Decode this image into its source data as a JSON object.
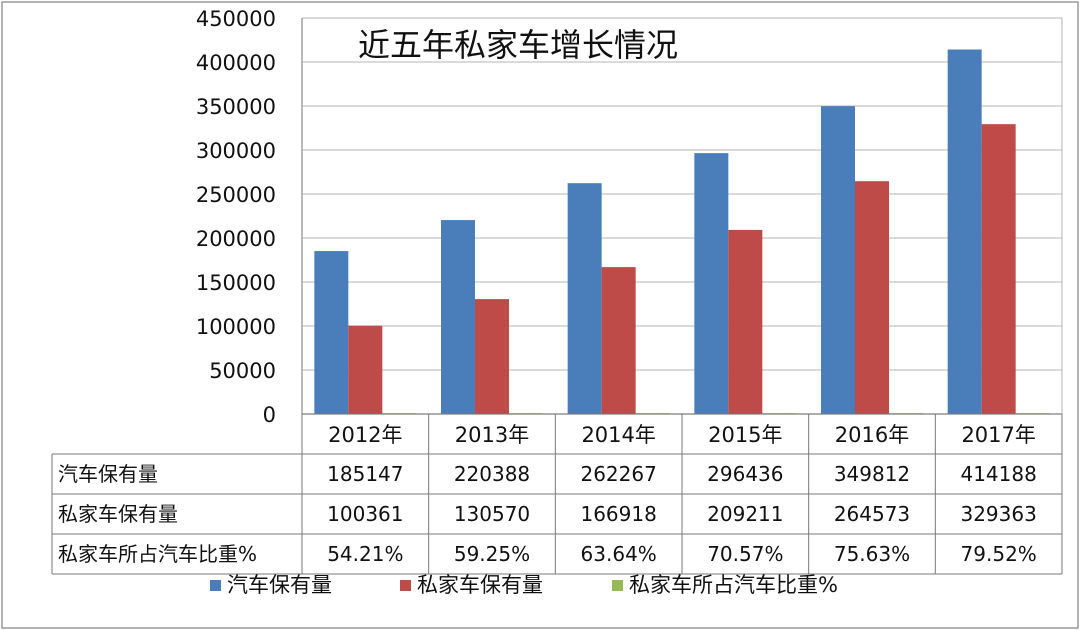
{
  "chart_data": {
    "type": "bar",
    "title": "近五年私家车增长情况",
    "categories": [
      "2012年",
      "2013年",
      "2014年",
      "2015年",
      "2016年",
      "2017年"
    ],
    "ylim": [
      0,
      450000
    ],
    "yticks": [
      0,
      50000,
      100000,
      150000,
      200000,
      250000,
      300000,
      350000,
      400000,
      450000
    ],
    "grid": true,
    "legend_position": "bottom",
    "series": [
      {
        "name": "汽车保有量",
        "color": "#4a7ebb",
        "values": [
          185147,
          220388,
          262267,
          296436,
          349812,
          414188
        ],
        "labels": [
          "185147",
          "220388",
          "262267",
          "296436",
          "349812",
          "414188"
        ]
      },
      {
        "name": "私家车保有量",
        "color": "#be4b48",
        "values": [
          100361,
          130570,
          166918,
          209211,
          264573,
          329363
        ],
        "labels": [
          "100361",
          "130570",
          "166918",
          "209211",
          "264573",
          "329363"
        ]
      },
      {
        "name": "私家车所占汽车比重%",
        "color": "#98b954",
        "values": [
          54.21,
          59.25,
          63.64,
          70.57,
          75.63,
          79.52
        ],
        "labels": [
          "54.21%",
          "59.25%",
          "63.64%",
          "70.57%",
          "75.63%",
          "79.52%"
        ]
      }
    ]
  }
}
